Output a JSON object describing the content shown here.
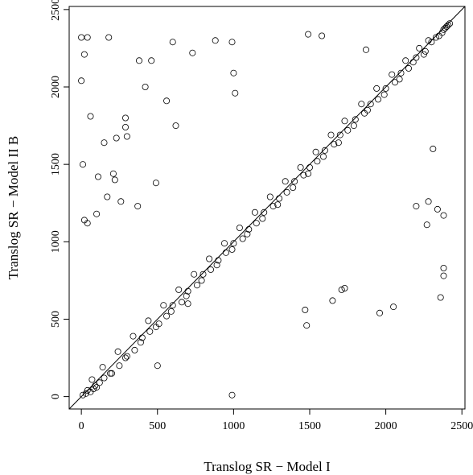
{
  "chart_data": {
    "type": "scatter",
    "title": "",
    "xlabel": "Translog SR − Model I",
    "ylabel": "Translog SR − Model II B",
    "xlim": [
      -80,
      2520
    ],
    "ylim": [
      -80,
      2520
    ],
    "xticks": [
      0,
      500,
      1000,
      1500,
      2000,
      2500
    ],
    "yticks": [
      0,
      500,
      1000,
      1500,
      2000,
      2500
    ],
    "reference_line": "y = x",
    "grid": false,
    "series": [
      {
        "marker": "open-circle",
        "points": [
          [
            0,
            2320
          ],
          [
            40,
            2320
          ],
          [
            20,
            2210
          ],
          [
            180,
            2320
          ],
          [
            600,
            2290
          ],
          [
            730,
            2220
          ],
          [
            880,
            2300
          ],
          [
            990,
            2290
          ],
          [
            380,
            2170
          ],
          [
            460,
            2170
          ],
          [
            420,
            2000
          ],
          [
            0,
            2040
          ],
          [
            60,
            1810
          ],
          [
            290,
            1800
          ],
          [
            290,
            1740
          ],
          [
            300,
            1680
          ],
          [
            150,
            1640
          ],
          [
            230,
            1670
          ],
          [
            560,
            1910
          ],
          [
            620,
            1750
          ],
          [
            10,
            1500
          ],
          [
            110,
            1420
          ],
          [
            210,
            1440
          ],
          [
            220,
            1400
          ],
          [
            170,
            1290
          ],
          [
            100,
            1180
          ],
          [
            20,
            1140
          ],
          [
            40,
            1120
          ],
          [
            260,
            1260
          ],
          [
            370,
            1230
          ],
          [
            490,
            1380
          ],
          [
            1000,
            2090
          ],
          [
            1010,
            1960
          ],
          [
            1490,
            2340
          ],
          [
            1580,
            2330
          ],
          [
            1870,
            2240
          ],
          [
            2310,
            1600
          ],
          [
            2340,
            1210
          ],
          [
            2380,
            1170
          ],
          [
            2200,
            1230
          ],
          [
            2270,
            1110
          ],
          [
            2280,
            1260
          ],
          [
            2380,
            830
          ],
          [
            2380,
            780
          ],
          [
            2360,
            640
          ],
          [
            2050,
            580
          ],
          [
            1960,
            540
          ],
          [
            1710,
            690
          ],
          [
            1730,
            700
          ],
          [
            1650,
            620
          ],
          [
            1470,
            560
          ],
          [
            1480,
            460
          ],
          [
            990,
            10
          ],
          [
            700,
            600
          ],
          [
            500,
            200
          ],
          [
            80,
            50
          ],
          [
            30,
            20
          ],
          [
            120,
            90
          ],
          [
            200,
            150
          ],
          [
            60,
            30
          ],
          [
            10,
            10
          ],
          [
            150,
            120
          ],
          [
            90,
            70
          ],
          [
            40,
            40
          ],
          [
            250,
            200
          ],
          [
            300,
            260
          ],
          [
            350,
            300
          ],
          [
            400,
            380
          ],
          [
            450,
            420
          ],
          [
            510,
            470
          ],
          [
            560,
            520
          ],
          [
            600,
            590
          ],
          [
            660,
            610
          ],
          [
            700,
            680
          ],
          [
            760,
            720
          ],
          [
            800,
            790
          ],
          [
            850,
            820
          ],
          [
            900,
            880
          ],
          [
            950,
            930
          ],
          [
            1000,
            990
          ],
          [
            1060,
            1020
          ],
          [
            1100,
            1080
          ],
          [
            1150,
            1120
          ],
          [
            1200,
            1190
          ],
          [
            1260,
            1230
          ],
          [
            1300,
            1280
          ],
          [
            1350,
            1320
          ],
          [
            1400,
            1390
          ],
          [
            1460,
            1430
          ],
          [
            1500,
            1480
          ],
          [
            1550,
            1520
          ],
          [
            1600,
            1590
          ],
          [
            1660,
            1630
          ],
          [
            1700,
            1690
          ],
          [
            1750,
            1720
          ],
          [
            1800,
            1790
          ],
          [
            1860,
            1830
          ],
          [
            1900,
            1890
          ],
          [
            1950,
            1920
          ],
          [
            2000,
            1990
          ],
          [
            2060,
            2030
          ],
          [
            2100,
            2090
          ],
          [
            2150,
            2120
          ],
          [
            2200,
            2190
          ],
          [
            2260,
            2230
          ],
          [
            2300,
            2290
          ],
          [
            2350,
            2330
          ],
          [
            2380,
            2370
          ],
          [
            2400,
            2390
          ],
          [
            2410,
            2400
          ],
          [
            2420,
            2410
          ],
          [
            2390,
            2380
          ],
          [
            2370,
            2350
          ],
          [
            2330,
            2320
          ],
          [
            2280,
            2300
          ],
          [
            2250,
            2210
          ],
          [
            2220,
            2250
          ],
          [
            2180,
            2160
          ],
          [
            2130,
            2170
          ],
          [
            2090,
            2050
          ],
          [
            2040,
            2080
          ],
          [
            1990,
            1950
          ],
          [
            1940,
            1990
          ],
          [
            1880,
            1850
          ],
          [
            1840,
            1890
          ],
          [
            1790,
            1750
          ],
          [
            1730,
            1780
          ],
          [
            1690,
            1640
          ],
          [
            1640,
            1690
          ],
          [
            1590,
            1550
          ],
          [
            1540,
            1580
          ],
          [
            1490,
            1440
          ],
          [
            1440,
            1480
          ],
          [
            1390,
            1350
          ],
          [
            1340,
            1390
          ],
          [
            1290,
            1240
          ],
          [
            1240,
            1290
          ],
          [
            1190,
            1150
          ],
          [
            1140,
            1190
          ],
          [
            1090,
            1050
          ],
          [
            1040,
            1090
          ],
          [
            990,
            950
          ],
          [
            940,
            990
          ],
          [
            890,
            850
          ],
          [
            840,
            890
          ],
          [
            790,
            750
          ],
          [
            740,
            790
          ],
          [
            690,
            650
          ],
          [
            640,
            690
          ],
          [
            590,
            550
          ],
          [
            540,
            590
          ],
          [
            490,
            450
          ],
          [
            440,
            490
          ],
          [
            390,
            350
          ],
          [
            340,
            390
          ],
          [
            290,
            250
          ],
          [
            240,
            290
          ],
          [
            190,
            150
          ],
          [
            140,
            190
          ],
          [
            100,
            60
          ],
          [
            70,
            110
          ]
        ]
      }
    ]
  }
}
